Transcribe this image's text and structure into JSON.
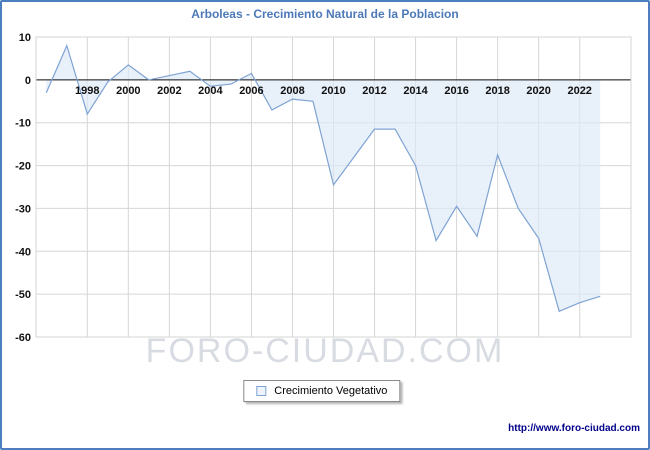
{
  "title": "Arboleas - Crecimiento Natural de la Poblacion",
  "legend": {
    "label": "Crecimiento Vegetativo"
  },
  "watermark": "FORO-CIUDAD.COM",
  "footer": {
    "url": "http://www.foro-ciudad.com"
  },
  "colors": {
    "line": "#7fa3d3",
    "fill": "#dbe8f7",
    "grid": "#d6d6d6",
    "zero_axis": "#111111",
    "title": "#4d79b8",
    "border": "#4d7ebf",
    "tick": "#111111",
    "watermark": "#d8dce2",
    "url": "#00008b"
  },
  "chart_data": {
    "type": "area",
    "title": "Arboleas - Crecimiento Natural de la Poblacion",
    "series_name": "Crecimiento Vegetativo",
    "xlabel": "",
    "ylabel": "",
    "grid": true,
    "legend_position": "bottom-center",
    "baseline": 0,
    "ylim": [
      -60,
      10
    ],
    "ytick_step": 10,
    "x_range": [
      1995.5,
      2024.5
    ],
    "xticks": [
      1998,
      2000,
      2002,
      2004,
      2006,
      2008,
      2010,
      2012,
      2014,
      2016,
      2018,
      2020,
      2022
    ],
    "x_years": [
      1996,
      1997,
      1998,
      1999,
      2000,
      2001,
      2002,
      2003,
      2004,
      2005,
      2006,
      2007,
      2008,
      2009,
      2010,
      2011,
      2012,
      2013,
      2014,
      2015,
      2016,
      2017,
      2018,
      2019,
      2020,
      2021,
      2022,
      2023
    ],
    "values": [
      -3,
      8,
      -8,
      -0.5,
      3.5,
      0,
      1,
      2,
      -1.5,
      -1,
      1.5,
      -7,
      -4.5,
      -5,
      -24.5,
      -18,
      -11.5,
      -11.5,
      -20,
      -37.5,
      -29.5,
      -36.5,
      -17.5,
      -30,
      -37,
      -54,
      -52,
      -50.5
    ]
  }
}
